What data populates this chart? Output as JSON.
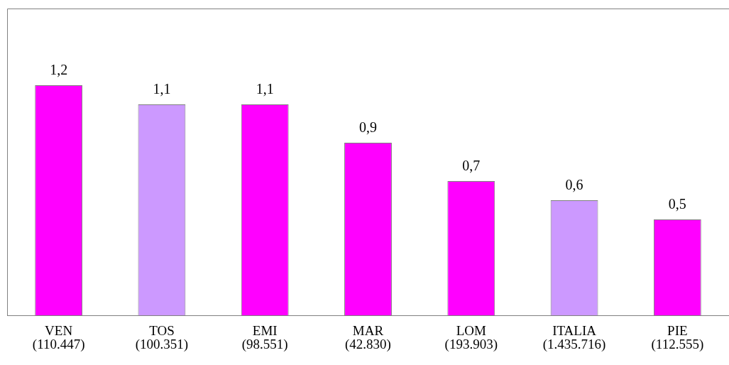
{
  "chart_data": {
    "type": "bar",
    "categories": [
      "VEN\n(110.447)",
      "TOS\n(100.351)",
      "EMI\n(98.551)",
      "MAR\n(42.830)",
      "LOM\n(193.903)",
      "ITALIA\n(1.435.716)",
      "PIE\n(112.555)"
    ],
    "values": [
      1.2,
      1.1,
      1.1,
      0.9,
      0.7,
      0.6,
      0.5
    ],
    "value_labels": [
      "1,2",
      "1,1",
      "1,1",
      "0,9",
      "0,7",
      "0,6",
      "0,5"
    ],
    "colors": [
      "#ff00ff",
      "#cc99ff",
      "#ff00ff",
      "#ff00ff",
      "#ff00ff",
      "#cc99ff",
      "#ff00ff"
    ],
    "ylim": [
      0,
      1.6
    ],
    "tick_labels": "x",
    "grid": false,
    "legend": false
  }
}
